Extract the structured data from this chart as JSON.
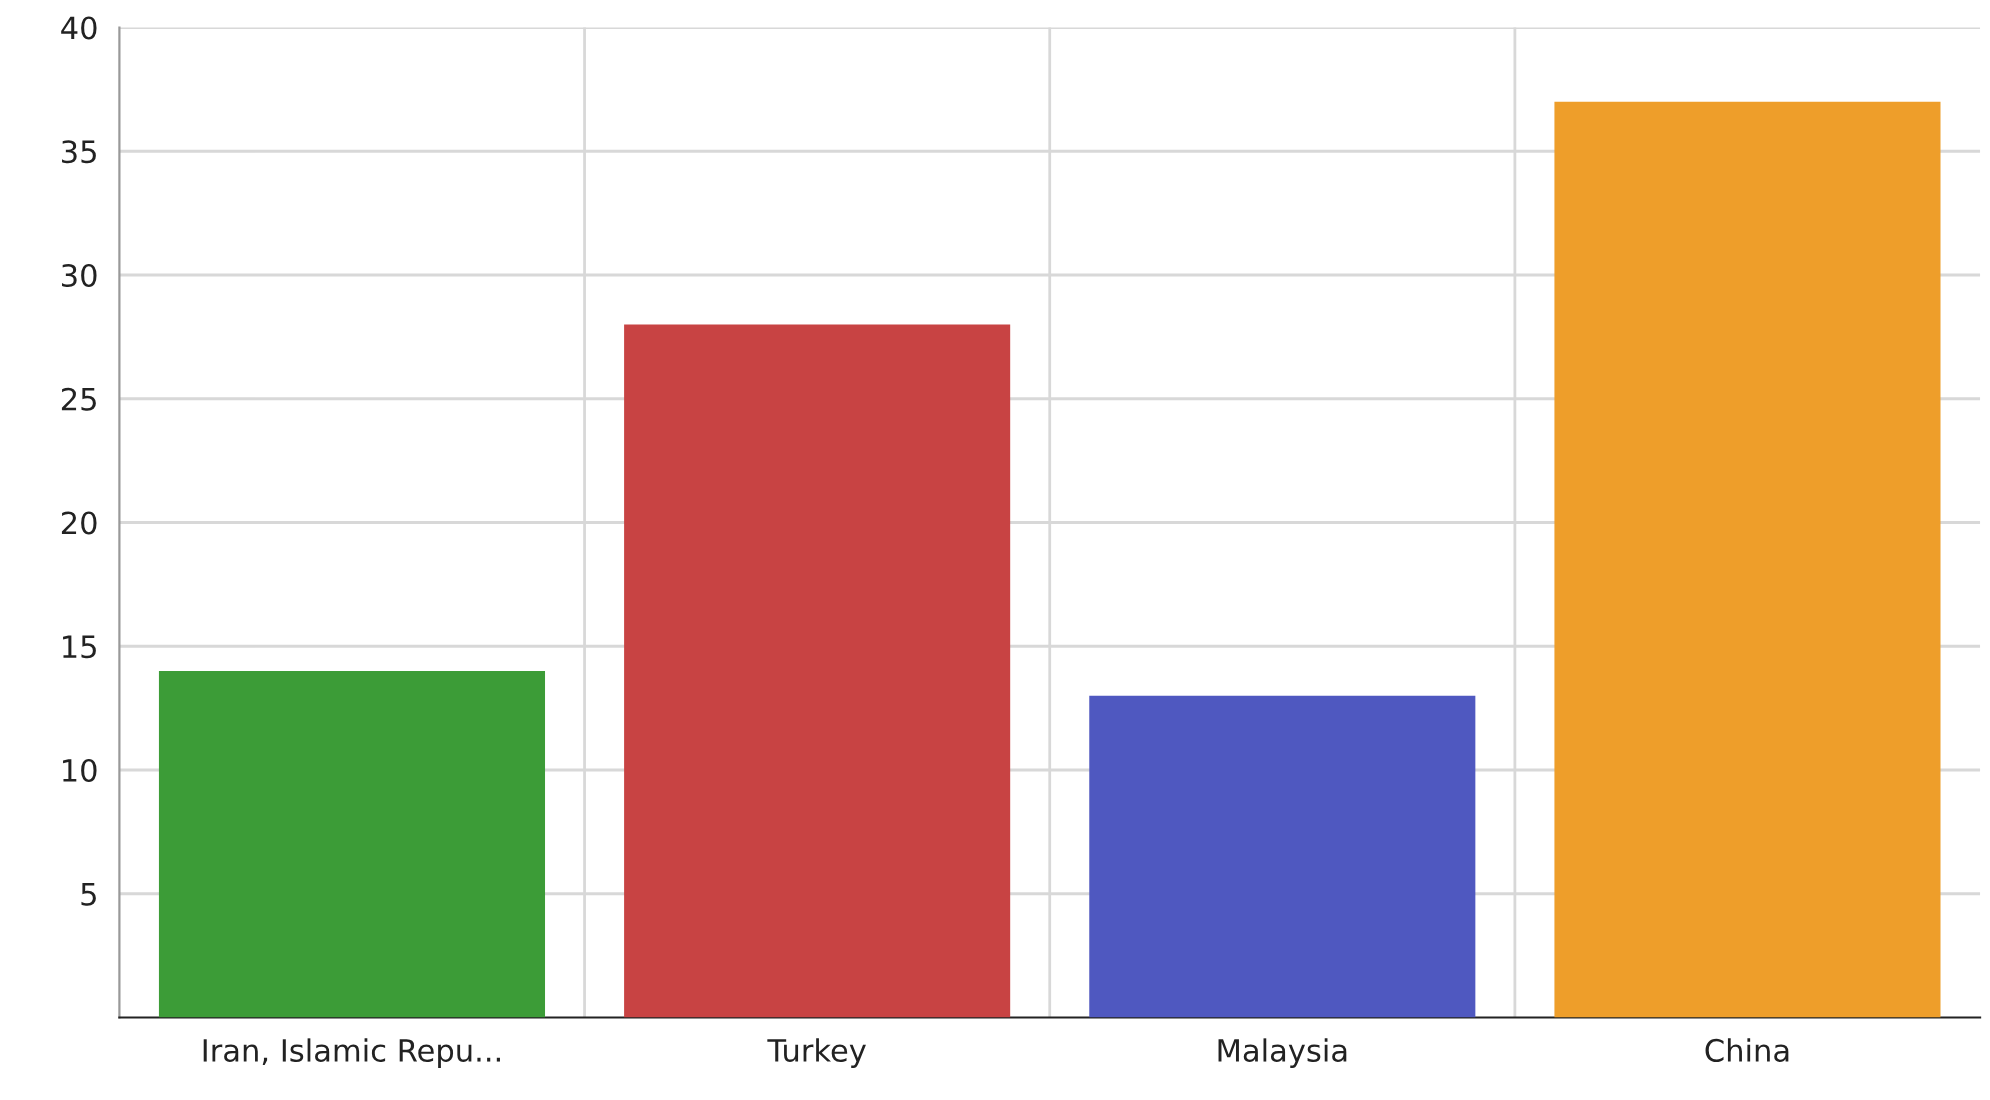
{
  "chart_data": {
    "type": "bar",
    "categories": [
      "Iran, Islamic Repu...",
      "Turkey",
      "Malaysia",
      "China"
    ],
    "values": [
      14,
      28,
      13,
      37
    ],
    "colors": [
      "#3c9c37",
      "#c84343",
      "#4f58c0",
      "#ee9e2a"
    ],
    "ylim": [
      0,
      40
    ],
    "yticks": [
      5,
      10,
      15,
      20,
      25,
      30,
      35,
      40
    ],
    "grid": true,
    "legend": false
  }
}
